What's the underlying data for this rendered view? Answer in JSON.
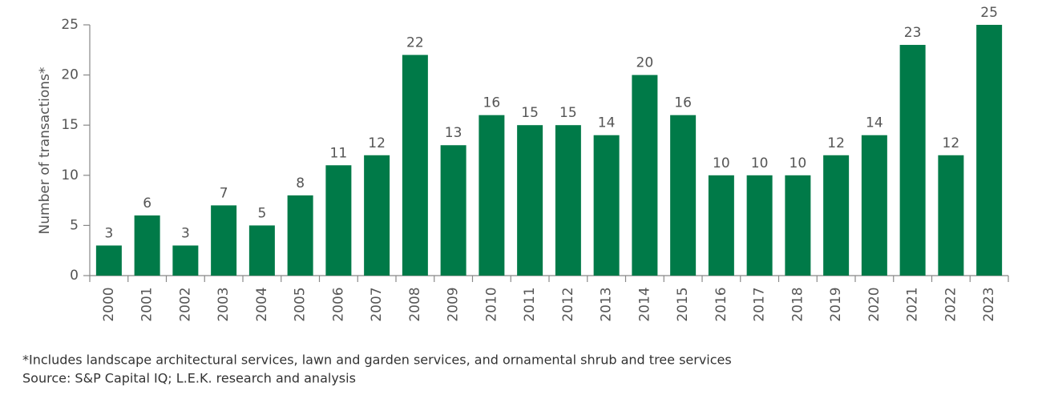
{
  "chart_data": {
    "type": "bar",
    "y_label": "Number of transactions*",
    "categories": [
      "2000",
      "2001",
      "2002",
      "2003",
      "2004",
      "2005",
      "2006",
      "2007",
      "2008",
      "2009",
      "2010",
      "2011",
      "2012",
      "2013",
      "2014",
      "2015",
      "2016",
      "2017",
      "2018",
      "2019",
      "2020",
      "2021",
      "2022",
      "2023"
    ],
    "values": [
      3,
      6,
      3,
      7,
      5,
      8,
      11,
      12,
      22,
      13,
      16,
      15,
      15,
      14,
      20,
      16,
      10,
      10,
      10,
      12,
      14,
      23,
      12,
      25
    ],
    "color": "#007a48",
    "ylim": [
      0,
      25
    ],
    "yticks": [
      0,
      5,
      10,
      15,
      20,
      25
    ],
    "footnotes": [
      "*Includes landscape architectural services, lawn and garden services, and ornamental shrub and tree services",
      "Source: S&P Capital IQ; L.E.K. research and analysis"
    ]
  }
}
